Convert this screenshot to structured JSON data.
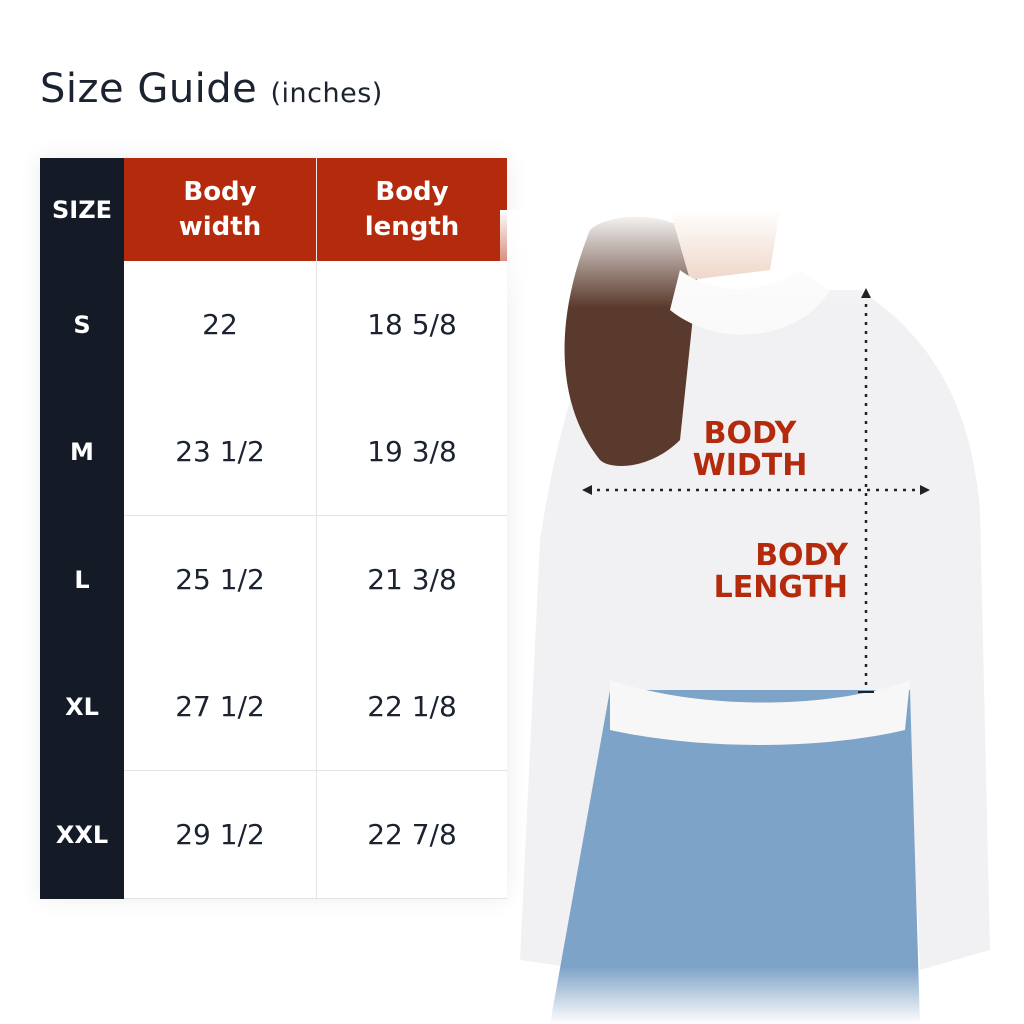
{
  "title": {
    "main": "Size Guide",
    "unit": "(inches)"
  },
  "table": {
    "headers": [
      "SIZE",
      "Body width",
      "Body length"
    ],
    "rows": [
      {
        "size": "S",
        "width": "22",
        "length": "18 5/8"
      },
      {
        "size": "M",
        "width": "23 1/2",
        "length": "19 3/8"
      },
      {
        "size": "L",
        "width": "25 1/2",
        "length": "21 3/8"
      },
      {
        "size": "XL",
        "width": "27 1/2",
        "length": "22 1/8"
      },
      {
        "size": "XXL",
        "width": "29 1/2",
        "length": "22 7/8"
      }
    ]
  },
  "diagram": {
    "width_label": [
      "BODY",
      "WIDTH"
    ],
    "length_label": [
      "BODY",
      "LENGTH"
    ]
  },
  "colors": {
    "accent": "#b32a0c",
    "dark": "#141b26",
    "text": "#1b2230"
  }
}
